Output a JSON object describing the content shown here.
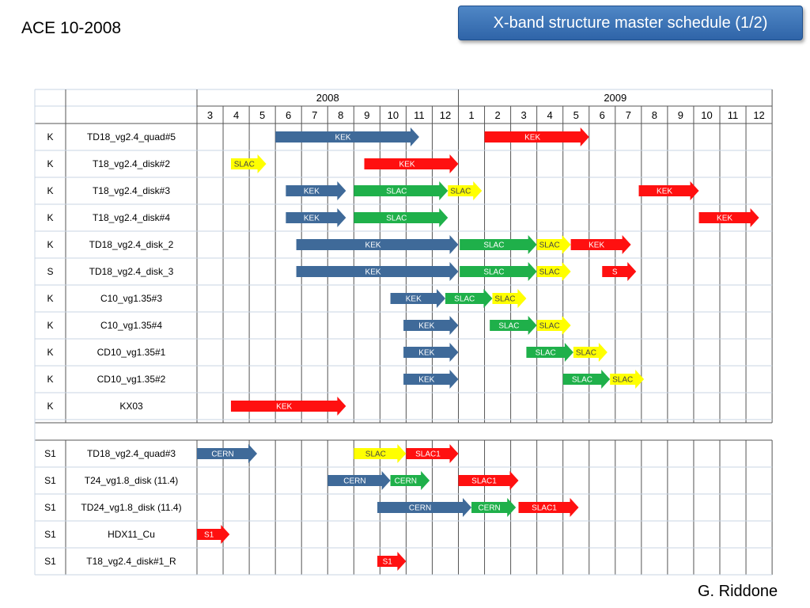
{
  "header": {
    "left_label": "ACE 10-2008",
    "title": "X-band structure master schedule (1/2)"
  },
  "footer": {
    "author": "G. Riddone"
  },
  "colors": {
    "KEK": "#3f6a99",
    "SLAC": "#1fb04a",
    "SLAC_yellow": "#ffff00",
    "red": "#ff1010",
    "grid": "#c8d4e3",
    "grid_dark": "#555555"
  },
  "timeline": {
    "years": [
      {
        "label": "2008",
        "months": [
          "3",
          "4",
          "5",
          "6",
          "7",
          "8",
          "9",
          "10",
          "11",
          "12"
        ]
      },
      {
        "label": "2009",
        "months": [
          "1",
          "2",
          "3",
          "4",
          "5",
          "6",
          "7",
          "8",
          "9",
          "10",
          "11",
          "12"
        ]
      }
    ]
  },
  "groups": [
    {
      "rows": [
        {
          "code": "K",
          "name": "TD18_vg2.4_quad#5",
          "bars": [
            {
              "label": "KEK",
              "start": 3,
              "end": 8.5,
              "color": "KEK"
            },
            {
              "label": "KEK",
              "start": 11,
              "end": 15,
              "color": "red"
            }
          ]
        },
        {
          "code": "K",
          "name": "T18_vg2.4_disk#2",
          "bars": [
            {
              "label": "SLAC",
              "start": 1.3,
              "end": 2.65,
              "color": "SLAC_yellow"
            },
            {
              "label": "KEK",
              "start": 6.4,
              "end": 10,
              "color": "red"
            }
          ]
        },
        {
          "code": "K",
          "name": "T18_vg2.4_disk#3",
          "bars": [
            {
              "label": "KEK",
              "start": 3.4,
              "end": 5.7,
              "color": "KEK"
            },
            {
              "label": "SLAC",
              "start": 6,
              "end": 9.6,
              "color": "SLAC"
            },
            {
              "label": "SLAC",
              "start": 9.6,
              "end": 10.9,
              "color": "SLAC_yellow"
            },
            {
              "label": "KEK",
              "start": 16.9,
              "end": 19.2,
              "color": "red"
            }
          ]
        },
        {
          "code": "K",
          "name": "T18_vg2.4_disk#4",
          "bars": [
            {
              "label": "KEK",
              "start": 3.4,
              "end": 5.7,
              "color": "KEK"
            },
            {
              "label": "SLAC",
              "start": 6,
              "end": 9.6,
              "color": "SLAC"
            },
            {
              "label": "KEK",
              "start": 19.2,
              "end": 21.5,
              "color": "red"
            }
          ]
        },
        {
          "code": "K",
          "name": "TD18_vg2.4_disk_2",
          "bars": [
            {
              "label": "KEK",
              "start": 3.8,
              "end": 10,
              "color": "KEK"
            },
            {
              "label": "SLAC",
              "start": 10.05,
              "end": 13,
              "color": "SLAC"
            },
            {
              "label": "SLAC",
              "start": 13,
              "end": 14.3,
              "color": "SLAC_yellow"
            },
            {
              "label": "KEK",
              "start": 14.3,
              "end": 16.6,
              "color": "red"
            }
          ]
        },
        {
          "code": "S",
          "name": "TD18_vg2.4_disk_3",
          "bars": [
            {
              "label": "KEK",
              "start": 3.8,
              "end": 10,
              "color": "KEK"
            },
            {
              "label": "SLAC",
              "start": 10.05,
              "end": 13,
              "color": "SLAC"
            },
            {
              "label": "SLAC",
              "start": 13,
              "end": 14.3,
              "color": "SLAC_yellow"
            },
            {
              "label": "S",
              "start": 15.5,
              "end": 16.8,
              "color": "red"
            }
          ]
        },
        {
          "code": "K",
          "name": "C10_vg1.35#3",
          "bars": [
            {
              "label": "KEK",
              "start": 7.4,
              "end": 9.5,
              "color": "KEK"
            },
            {
              "label": "SLAC",
              "start": 9.5,
              "end": 11.3,
              "color": "SLAC"
            },
            {
              "label": "SLAC",
              "start": 11.3,
              "end": 12.6,
              "color": "SLAC_yellow"
            }
          ]
        },
        {
          "code": "K",
          "name": "C10_vg1.35#4",
          "bars": [
            {
              "label": "KEK",
              "start": 7.9,
              "end": 10,
              "color": "KEK"
            },
            {
              "label": "SLAC",
              "start": 11.2,
              "end": 13,
              "color": "SLAC"
            },
            {
              "label": "SLAC",
              "start": 13,
              "end": 14.3,
              "color": "SLAC_yellow"
            }
          ]
        },
        {
          "code": "K",
          "name": "CD10_vg1.35#1",
          "bars": [
            {
              "label": "KEK",
              "start": 7.9,
              "end": 10,
              "color": "KEK"
            },
            {
              "label": "SLAC",
              "start": 12.6,
              "end": 14.4,
              "color": "SLAC"
            },
            {
              "label": "SLAC",
              "start": 14.4,
              "end": 15.7,
              "color": "SLAC_yellow"
            }
          ]
        },
        {
          "code": "K",
          "name": "CD10_vg1.35#2",
          "bars": [
            {
              "label": "KEK",
              "start": 7.9,
              "end": 10,
              "color": "KEK"
            },
            {
              "label": "SLAC",
              "start": 14,
              "end": 15.8,
              "color": "SLAC"
            },
            {
              "label": "SLAC",
              "start": 15.8,
              "end": 17.1,
              "color": "SLAC_yellow"
            }
          ]
        },
        {
          "code": "K",
          "name": "KX03",
          "bars": [
            {
              "label": "KEK",
              "start": 1.3,
              "end": 5.7,
              "color": "red"
            }
          ]
        }
      ]
    },
    {
      "rows": [
        {
          "code": "S1",
          "name": "TD18_vg2.4_quad#3",
          "bars": [
            {
              "label": "CERN",
              "start": 0,
              "end": 2.3,
              "color": "KEK"
            },
            {
              "label": "SLAC",
              "start": 6,
              "end": 8,
              "color": "SLAC_yellow"
            },
            {
              "label": "SLAC1",
              "start": 8,
              "end": 10,
              "color": "red"
            }
          ]
        },
        {
          "code": "S1",
          "name": "T24_vg1.8_disk (11.4)",
          "bars": [
            {
              "label": "CERN",
              "start": 5,
              "end": 7.4,
              "color": "KEK"
            },
            {
              "label": "CERN",
              "start": 7.4,
              "end": 8.9,
              "color": "SLAC"
            },
            {
              "label": "SLAC1",
              "start": 10,
              "end": 12.3,
              "color": "red"
            }
          ]
        },
        {
          "code": "S1",
          "name": "TD24_vg1.8_disk (11.4)",
          "bars": [
            {
              "label": "CERN",
              "start": 6.9,
              "end": 10.5,
              "color": "KEK"
            },
            {
              "label": "CERN",
              "start": 10.5,
              "end": 12.2,
              "color": "SLAC"
            },
            {
              "label": "SLAC1",
              "start": 12.3,
              "end": 14.6,
              "color": "red"
            }
          ]
        },
        {
          "code": "S1",
          "name": "HDX11_Cu",
          "bars": [
            {
              "label": "S1",
              "start": 0,
              "end": 1.25,
              "color": "red"
            }
          ]
        },
        {
          "code": "S1",
          "name": "T18_vg2.4_disk#1_R",
          "bars": [
            {
              "label": "S1",
              "start": 6.9,
              "end": 8,
              "color": "red"
            }
          ]
        }
      ]
    }
  ]
}
